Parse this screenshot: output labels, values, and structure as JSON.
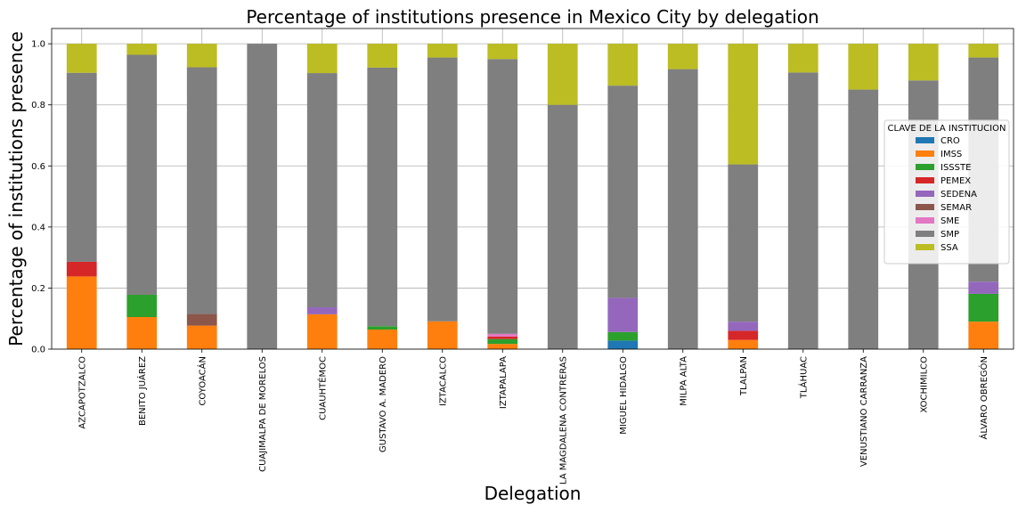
{
  "chart_data": {
    "type": "bar",
    "stacked": true,
    "title": "Percentage of institutions presence in Mexico City by delegation",
    "xlabel": "Delegation",
    "ylabel": "Percentage of institutions presence",
    "ylim": [
      0,
      1.05
    ],
    "yticks": [
      "0.0",
      "0.2",
      "0.4",
      "0.6",
      "0.8",
      "1.0"
    ],
    "grid": true,
    "legend_title": "CLAVE DE LA INSTITUCION",
    "legend_placement": "center-right",
    "categories": [
      "AZCAPOTZALCO",
      "BENITO JUÁREZ",
      "COYOACÁN",
      "CUAJIMALPA DE MORELOS",
      "CUAUHTÉMOC",
      "GUSTAVO A. MADERO",
      "IZTACALCO",
      "IZTAPALAPA",
      "LA MAGDALENA CONTRERAS",
      "MIGUEL HIDALGO",
      "MILPA ALTA",
      "TLALPAN",
      "TLÁHUAC",
      "VENUSTIANO CARRANZA",
      "XOCHIMILCO",
      "ÁLVARO OBREGÓN"
    ],
    "series": [
      {
        "name": "CRO",
        "color": "#1f77b4",
        "values": [
          0,
          0,
          0,
          0,
          0,
          0,
          0,
          0,
          0,
          0.028,
          0,
          0,
          0,
          0,
          0,
          0
        ]
      },
      {
        "name": "IMSS",
        "color": "#ff7f0e",
        "values": [
          0.238,
          0.105,
          0.077,
          0,
          0.114,
          0.064,
          0.091,
          0.017,
          0,
          0,
          0,
          0.03,
          0,
          0,
          0,
          0.09
        ]
      },
      {
        "name": "ISSSTE",
        "color": "#2ca02c",
        "values": [
          0,
          0.073,
          0,
          0,
          0,
          0.011,
          0,
          0.016,
          0,
          0.028,
          0,
          0,
          0,
          0,
          0,
          0.091
        ]
      },
      {
        "name": "PEMEX",
        "color": "#d62728",
        "values": [
          0.048,
          0,
          0,
          0,
          0,
          0,
          0,
          0.008,
          0,
          0,
          0,
          0.03,
          0,
          0,
          0,
          0
        ]
      },
      {
        "name": "SEDENA",
        "color": "#9467bd",
        "values": [
          0,
          0,
          0,
          0,
          0.023,
          0,
          0,
          0,
          0,
          0.112,
          0,
          0.03,
          0,
          0,
          0,
          0.04
        ]
      },
      {
        "name": "SEMAR",
        "color": "#8c564b",
        "values": [
          0,
          0,
          0.038,
          0,
          0,
          0,
          0,
          0,
          0,
          0,
          0,
          0,
          0,
          0,
          0,
          0
        ]
      },
      {
        "name": "SME",
        "color": "#e377c2",
        "values": [
          0,
          0,
          0,
          0,
          0,
          0,
          0,
          0.009,
          0,
          0,
          0,
          0,
          0,
          0,
          0,
          0
        ]
      },
      {
        "name": "SMP",
        "color": "#7f7f7f",
        "values": [
          0.619,
          0.786,
          0.808,
          1.0,
          0.767,
          0.847,
          0.864,
          0.9,
          0.8,
          0.695,
          0.917,
          0.515,
          0.906,
          0.85,
          0.88,
          0.734
        ]
      },
      {
        "name": "SSA",
        "color": "#bcbd22",
        "values": [
          0.095,
          0.036,
          0.077,
          0,
          0.096,
          0.078,
          0.045,
          0.05,
          0.2,
          0.137,
          0.083,
          0.395,
          0.094,
          0.15,
          0.12,
          0.045
        ]
      }
    ]
  }
}
